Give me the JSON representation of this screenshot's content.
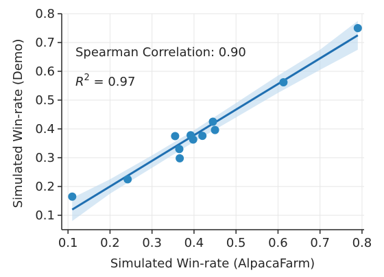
{
  "chart_data": {
    "type": "scatter",
    "title": "",
    "xlabel": "Simulated Win-rate (AlpacaFarm)",
    "ylabel": "Simulated Win-rate (Demo)",
    "xlim": [
      0.085,
      0.805
    ],
    "ylim": [
      0.05,
      0.8
    ],
    "xticks": [
      0.1,
      0.2,
      0.3,
      0.4,
      0.5,
      0.6,
      0.7,
      0.8
    ],
    "yticks": [
      0.1,
      0.2,
      0.3,
      0.4,
      0.5,
      0.6,
      0.7,
      0.8
    ],
    "grid": true,
    "annotations": {
      "spearman": "Spearman Correlation: 0.90",
      "r2_label": "R",
      "r2_sup": "2",
      "r2_value": " = 0.97"
    },
    "points": [
      {
        "x": 0.11,
        "y": 0.165
      },
      {
        "x": 0.242,
        "y": 0.225
      },
      {
        "x": 0.355,
        "y": 0.375
      },
      {
        "x": 0.365,
        "y": 0.33
      },
      {
        "x": 0.366,
        "y": 0.298
      },
      {
        "x": 0.392,
        "y": 0.378
      },
      {
        "x": 0.398,
        "y": 0.363
      },
      {
        "x": 0.42,
        "y": 0.376
      },
      {
        "x": 0.445,
        "y": 0.425
      },
      {
        "x": 0.45,
        "y": 0.396
      },
      {
        "x": 0.613,
        "y": 0.562
      },
      {
        "x": 0.79,
        "y": 0.75
      }
    ],
    "fit": {
      "x": [
        0.11,
        0.79
      ],
      "y": [
        0.12,
        0.725
      ]
    },
    "band": {
      "x": [
        0.11,
        0.2,
        0.3,
        0.4,
        0.5,
        0.6,
        0.7,
        0.79
      ],
      "lower": [
        0.08,
        0.175,
        0.265,
        0.355,
        0.44,
        0.525,
        0.605,
        0.675
      ],
      "upper": [
        0.16,
        0.225,
        0.308,
        0.395,
        0.49,
        0.585,
        0.675,
        0.775
      ]
    },
    "colors": {
      "points": "#2a86bf",
      "line": "#1f6fb1",
      "band": "#bcd9ef",
      "grid": "#e6e6e6",
      "axis": "#262626"
    }
  }
}
